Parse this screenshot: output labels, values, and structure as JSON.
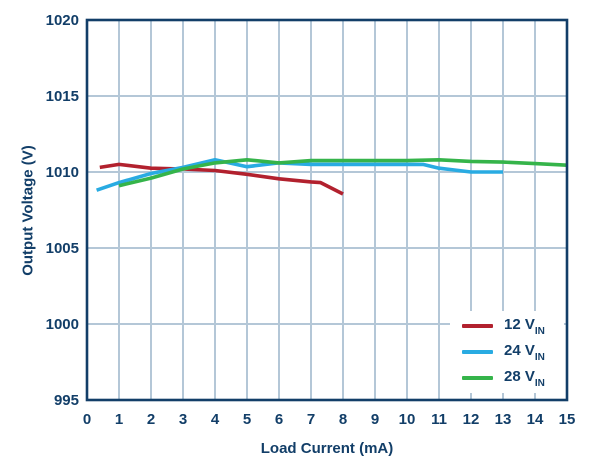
{
  "chart_data": {
    "type": "line",
    "title": "",
    "xlabel": "Load Current (mA)",
    "ylabel": "Output Voltage (V)",
    "xlim": [
      0,
      15
    ],
    "ylim": [
      995,
      1020
    ],
    "x_ticks": [
      0,
      1,
      2,
      3,
      4,
      5,
      6,
      7,
      8,
      9,
      10,
      11,
      12,
      13,
      14,
      15
    ],
    "y_ticks": [
      995,
      1000,
      1005,
      1010,
      1015,
      1020
    ],
    "grid": true,
    "legend_position": "lower-right",
    "series": [
      {
        "name": "12 VIN",
        "legend": {
          "text": "12 V",
          "sub": "IN"
        },
        "color": "#b2212e",
        "points": [
          [
            0.4,
            1010.3
          ],
          [
            1,
            1010.5
          ],
          [
            2,
            1010.25
          ],
          [
            3,
            1010.2
          ],
          [
            4,
            1010.1
          ],
          [
            5,
            1009.85
          ],
          [
            6,
            1009.55
          ],
          [
            7,
            1009.35
          ],
          [
            7.3,
            1009.3
          ],
          [
            8,
            1008.55
          ]
        ]
      },
      {
        "name": "24 VIN",
        "legend": {
          "text": "24 V",
          "sub": "IN"
        },
        "color": "#29abe2",
        "points": [
          [
            0.3,
            1008.8
          ],
          [
            1,
            1009.3
          ],
          [
            2,
            1009.9
          ],
          [
            3,
            1010.3
          ],
          [
            4,
            1010.8
          ],
          [
            5,
            1010.35
          ],
          [
            6,
            1010.6
          ],
          [
            7,
            1010.5
          ],
          [
            8,
            1010.5
          ],
          [
            9,
            1010.5
          ],
          [
            10,
            1010.5
          ],
          [
            10.5,
            1010.5
          ],
          [
            11,
            1010.25
          ],
          [
            12,
            1010.0
          ],
          [
            13,
            1010.0
          ]
        ]
      },
      {
        "name": "28 VIN",
        "legend": {
          "text": "28 V",
          "sub": "IN"
        },
        "color": "#35b44a",
        "points": [
          [
            1,
            1009.1
          ],
          [
            2,
            1009.6
          ],
          [
            3,
            1010.2
          ],
          [
            4,
            1010.6
          ],
          [
            5,
            1010.8
          ],
          [
            6,
            1010.6
          ],
          [
            7,
            1010.75
          ],
          [
            8,
            1010.75
          ],
          [
            9,
            1010.75
          ],
          [
            10,
            1010.75
          ],
          [
            11,
            1010.8
          ],
          [
            12,
            1010.7
          ],
          [
            13,
            1010.65
          ],
          [
            14,
            1010.55
          ],
          [
            15,
            1010.45
          ]
        ]
      }
    ]
  },
  "colors": {
    "navy": "#123e68",
    "grid": "#b4c7d7",
    "background": "#ffffff",
    "red": "#b2212e",
    "blue": "#29abe2",
    "green": "#35b44a"
  }
}
